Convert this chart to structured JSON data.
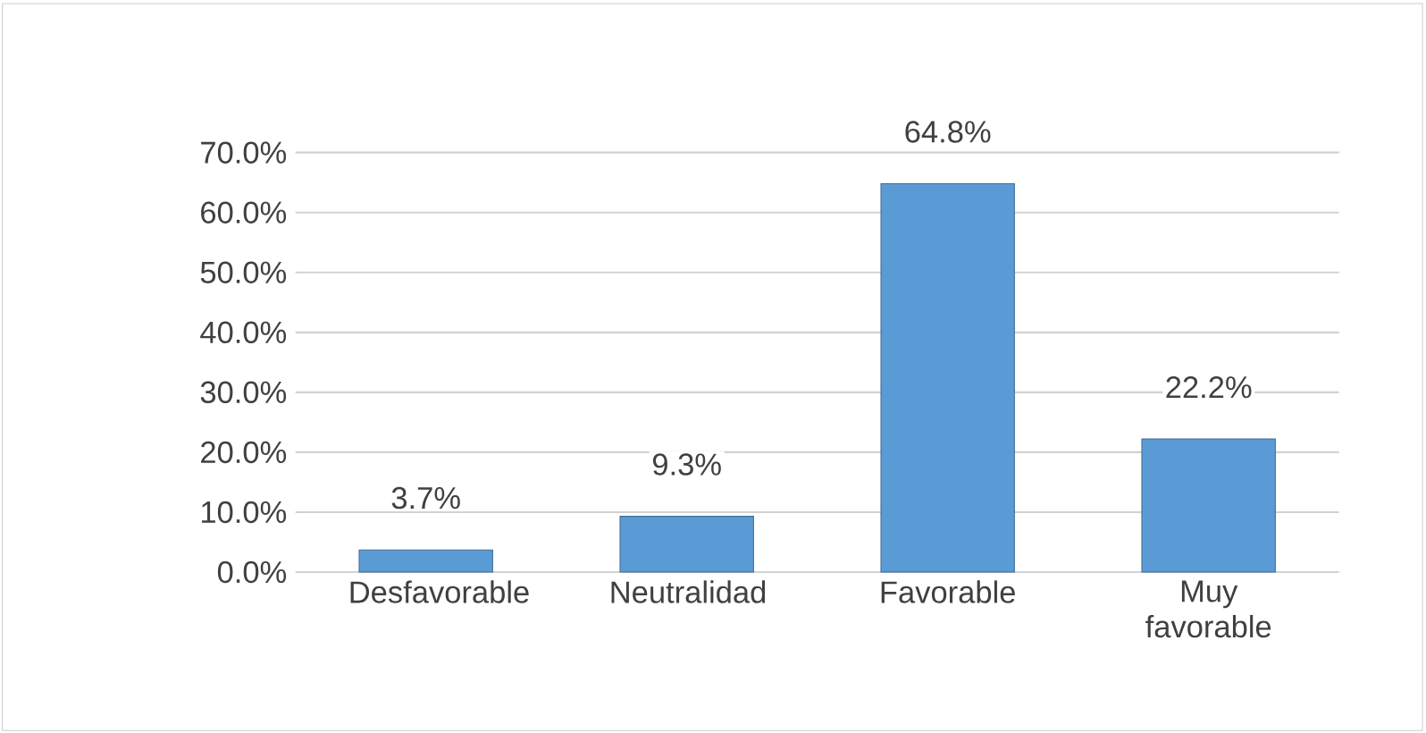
{
  "chart_data": {
    "type": "bar",
    "categories": [
      "Desfavorable",
      "Neutralidad",
      "Favorable",
      "Muy favorable"
    ],
    "values": [
      3.7,
      9.3,
      64.8,
      22.2
    ],
    "value_labels": [
      "3.7%",
      "9.3%",
      "64.8%",
      "22.2%"
    ],
    "color": "#5b9bd5",
    "ylim": [
      0,
      70
    ],
    "yticks": [
      {
        "value": 0,
        "label": "0.0%"
      },
      {
        "value": 10,
        "label": "10.0%"
      },
      {
        "value": 20,
        "label": "20.0%"
      },
      {
        "value": 30,
        "label": "30.0%"
      },
      {
        "value": 40,
        "label": "40.0%"
      },
      {
        "value": 50,
        "label": "50.0%"
      },
      {
        "value": 60,
        "label": "60.0%"
      },
      {
        "value": 70,
        "label": "70.0%"
      }
    ],
    "grid": "y"
  }
}
